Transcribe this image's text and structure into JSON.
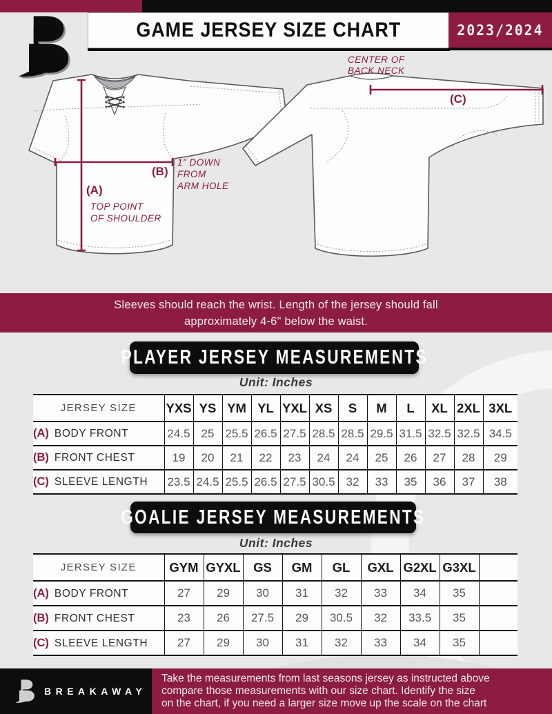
{
  "header": {
    "title": "GAME JERSEY SIZE CHART",
    "season": "2023/2024",
    "logo_icon": "breakaway-b-logo"
  },
  "diagram": {
    "front": {
      "a_key": "(A)",
      "a_note_lines": [
        "TOP POINT",
        "OF SHOULDER"
      ],
      "b_key": "(B)",
      "b_note_lines": [
        "1\" DOWN",
        "FROM",
        "ARM HOLE"
      ]
    },
    "back": {
      "c_key": "(C)",
      "neck_note_lines": [
        "CENTER OF",
        "BACK NECK"
      ]
    }
  },
  "banner": {
    "line1": "Sleeves should reach the wrist. Length of the jersey should fall",
    "line2": "approximately 4-6\" below the waist."
  },
  "sections": {
    "player_title": "PLAYER JERSEY MEASUREMENTS",
    "goalie_title": "GOALIE JERSEY MEASUREMENTS",
    "unit_label": "Unit: Inches"
  },
  "player_table": {
    "corner_label": "JERSEY SIZE",
    "sizes": [
      "YXS",
      "YS",
      "YM",
      "YL",
      "YXL",
      "XS",
      "S",
      "M",
      "L",
      "XL",
      "2XL",
      "3XL"
    ],
    "rows": [
      {
        "key": "(A)",
        "label": "BODY FRONT",
        "values": [
          "24.5",
          "25",
          "25.5",
          "26.5",
          "27.5",
          "28.5",
          "28.5",
          "29.5",
          "31.5",
          "32.5",
          "32.5",
          "34.5"
        ]
      },
      {
        "key": "(B)",
        "label": "FRONT CHEST",
        "values": [
          "19",
          "20",
          "21",
          "22",
          "23",
          "24",
          "24",
          "25",
          "26",
          "27",
          "28",
          "29"
        ]
      },
      {
        "key": "(C)",
        "label": "SLEEVE LENGTH",
        "values": [
          "23.5",
          "24.5",
          "25.5",
          "26.5",
          "27.5",
          "30.5",
          "32",
          "33",
          "35",
          "36",
          "37",
          "38"
        ]
      }
    ]
  },
  "goalie_table": {
    "corner_label": "JERSEY SIZE",
    "sizes": [
      "GYM",
      "GYXL",
      "GS",
      "GM",
      "GL",
      "GXL",
      "G2XL",
      "G3XL",
      ""
    ],
    "rows": [
      {
        "key": "(A)",
        "label": "BODY FRONT",
        "values": [
          "27",
          "29",
          "30",
          "31",
          "32",
          "33",
          "34",
          "35",
          ""
        ]
      },
      {
        "key": "(B)",
        "label": "FRONT CHEST",
        "values": [
          "23",
          "26",
          "27.5",
          "29",
          "30.5",
          "32",
          "33.5",
          "35",
          ""
        ]
      },
      {
        "key": "(C)",
        "label": "SLEEVE LENGTH",
        "values": [
          "27",
          "29",
          "30",
          "31",
          "32",
          "33",
          "34",
          "35",
          ""
        ]
      }
    ]
  },
  "footer": {
    "brand": "BREAKAWAY",
    "logo_icon": "breakaway-b-logo",
    "lines": [
      "Take the measurements from last seasons jersey as instructed above",
      "compare those measurements  with our size chart. Identify the size",
      "on the chart, if you need a larger size move up the scale on the chart"
    ]
  },
  "colors": {
    "maroon": "#8C1D40",
    "black": "#0d0d0d",
    "background": "#e8e8e9",
    "table_value_text": "#56565a"
  }
}
